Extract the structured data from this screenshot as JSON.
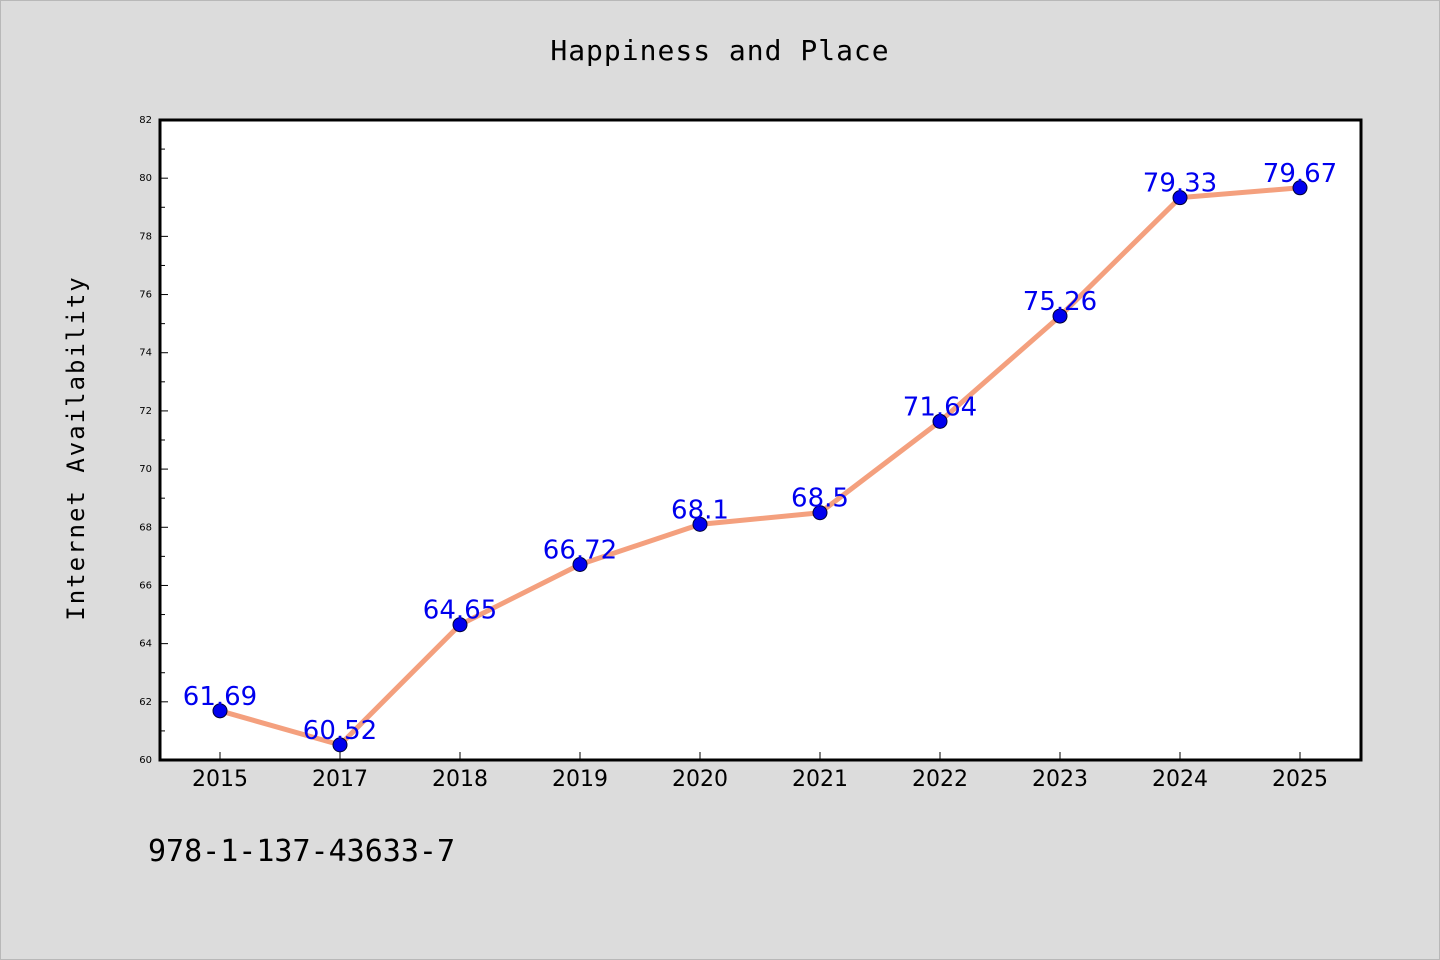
{
  "chart_data": {
    "type": "line",
    "title": "Happiness and Place",
    "xlabel": "",
    "ylabel": "Internet Availability",
    "categories": [
      "2015",
      "2017",
      "2018",
      "2019",
      "2020",
      "2021",
      "2022",
      "2023",
      "2024",
      "2025"
    ],
    "series": [
      {
        "values": [
          61.69,
          60.52,
          64.65,
          66.72,
          68.1,
          68.5,
          71.64,
          75.26,
          79.33,
          79.67
        ],
        "data_labels": [
          "61.69",
          "60.52",
          "64.65",
          "66.72",
          "68.1",
          "68.5",
          "71.64",
          "75.26",
          "79.33",
          "79.67"
        ]
      }
    ],
    "ylim": [
      60,
      82
    ],
    "yticks": [
      60,
      62,
      64,
      66,
      68,
      70,
      72,
      74,
      76,
      78,
      80,
      82
    ],
    "grid": false,
    "legend": "none",
    "colors": {
      "line": "#f4a07e",
      "marker": "#0000ee",
      "label": "#0000ee",
      "background": "#dcdcdc",
      "plot_background": "#ffffff"
    }
  },
  "footer": {
    "code": "978-1-137-43633-7"
  }
}
